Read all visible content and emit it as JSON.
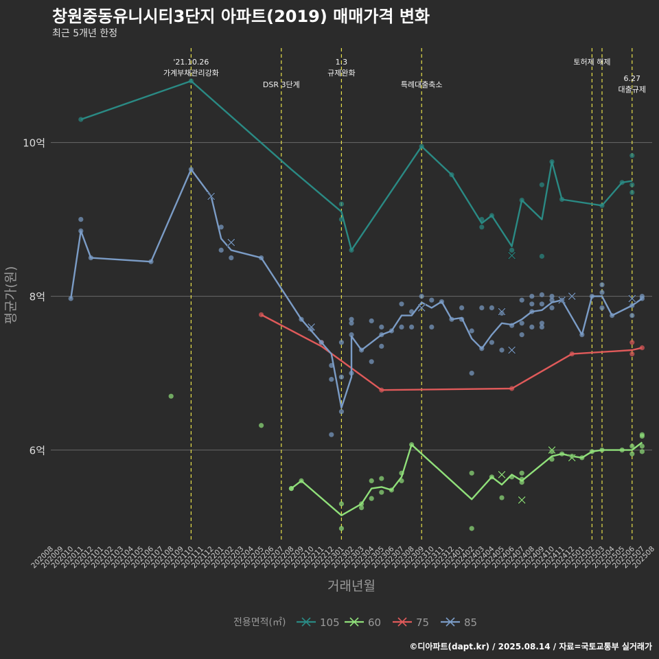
{
  "title": "창원중동유니시티3단지 아파트(2019) 매매가격 변화",
  "subtitle": "최근 5개년 한정",
  "caption": "©디아파트(dapt.kr) / 2025.08.14 / 자료=국토교통부 실거래가",
  "chart_data": {
    "type": "line",
    "xlabel": "거래년월",
    "ylabel": "평균가(원)",
    "x_ticks": [
      "202008",
      "202009",
      "202010",
      "202011",
      "202012",
      "202101",
      "202102",
      "202103",
      "202104",
      "202105",
      "202106",
      "202107",
      "202108",
      "202109",
      "202110",
      "202111",
      "202112",
      "202201",
      "202202",
      "202203",
      "202204",
      "202205",
      "202206",
      "202207",
      "202208",
      "202209",
      "202210",
      "202211",
      "202212",
      "202301",
      "202302",
      "202303",
      "202304",
      "202305",
      "202306",
      "202307",
      "202308",
      "202309",
      "202310",
      "202311",
      "202312",
      "202401",
      "202402",
      "202403",
      "202404",
      "202405",
      "202406",
      "202407",
      "202408",
      "202409",
      "202410",
      "202411",
      "202412",
      "202501",
      "202502",
      "202503",
      "202504",
      "202505",
      "202506",
      "202507",
      "202508"
    ],
    "y_ticks": [
      {
        "value": 6.0,
        "label": "6억"
      },
      {
        "value": 8.0,
        "label": "8억"
      },
      {
        "value": 10.0,
        "label": "10억"
      }
    ],
    "ylim": [
      4.8,
      11.3
    ],
    "grid": "horizontal",
    "legend": {
      "title": "전용면적(㎡)",
      "position": "bottom"
    },
    "annotations": [
      {
        "x": "202110",
        "lines": [
          "'21.10.26",
          "가계부채관리강화"
        ],
        "row": 0
      },
      {
        "x": "202207",
        "lines": [
          "DSR 3단계"
        ],
        "row": 1
      },
      {
        "x": "202301",
        "lines": [
          "1.3",
          "규제완화"
        ],
        "row": 0
      },
      {
        "x": "202309",
        "lines": [
          "특례대출축소"
        ],
        "row": 1
      },
      {
        "x": "202502",
        "lines": [
          "토허제 해제"
        ],
        "row": 0
      },
      {
        "x": "202503",
        "lines": [],
        "row": 0
      },
      {
        "x": "202506",
        "lines": [
          "6.27",
          "대출규제"
        ],
        "row": 1
      }
    ],
    "series": [
      {
        "name": "105",
        "color": "#2a8a84",
        "line": [
          [
            "202011",
            10.3
          ],
          [
            "202110",
            10.8
          ],
          [
            "202208",
            9.65
          ],
          [
            "202301",
            9.1
          ],
          [
            "202302",
            8.6
          ],
          [
            "202309",
            9.95
          ],
          [
            "202312",
            9.58
          ],
          [
            "202403",
            8.95
          ],
          [
            "202404",
            9.05
          ],
          [
            "202406",
            8.65
          ],
          [
            "202407",
            9.25
          ],
          [
            "202409",
            9.0
          ],
          [
            "202410",
            9.75
          ],
          [
            "202411",
            9.26
          ],
          [
            "202503",
            9.18
          ],
          [
            "202505",
            9.48
          ],
          [
            "202506",
            9.5
          ]
        ],
        "points": [
          [
            "202011",
            10.3
          ],
          [
            "202110",
            10.8
          ],
          [
            "202301",
            9.2
          ],
          [
            "202301",
            9.0
          ],
          [
            "202302",
            8.6
          ],
          [
            "202309",
            9.95
          ],
          [
            "202312",
            9.58
          ],
          [
            "202403",
            8.9
          ],
          [
            "202403",
            9.0
          ],
          [
            "202404",
            9.05
          ],
          [
            "202406",
            8.6
          ],
          [
            "202407",
            9.25
          ],
          [
            "202409",
            9.45
          ],
          [
            "202409",
            8.52
          ],
          [
            "202410",
            9.75
          ],
          [
            "202411",
            9.26
          ],
          [
            "202503",
            9.18
          ],
          [
            "202505",
            9.48
          ],
          [
            "202506",
            9.83
          ],
          [
            "202506",
            9.45
          ],
          [
            "202506",
            9.35
          ]
        ],
        "cancelled": [
          [
            "202406",
            8.53
          ]
        ]
      },
      {
        "name": "60",
        "color": "#90e07a",
        "line": [
          [
            "202208",
            5.5
          ],
          [
            "202209",
            5.6
          ],
          [
            "202301",
            5.15
          ],
          [
            "202303",
            5.3
          ],
          [
            "202304",
            5.5
          ],
          [
            "202305",
            5.52
          ],
          [
            "202306",
            5.48
          ],
          [
            "202307",
            5.65
          ],
          [
            "202308",
            6.07
          ],
          [
            "202402",
            5.36
          ],
          [
            "202404",
            5.65
          ],
          [
            "202405",
            5.55
          ],
          [
            "202406",
            5.68
          ],
          [
            "202407",
            5.6
          ],
          [
            "202410",
            5.92
          ],
          [
            "202411",
            5.95
          ],
          [
            "202412",
            5.92
          ],
          [
            "202501",
            5.9
          ],
          [
            "202502",
            5.98
          ],
          [
            "202503",
            6.0
          ],
          [
            "202506",
            6.0
          ],
          [
            "202507",
            6.1
          ]
        ],
        "points": [
          [
            "202108",
            6.7
          ],
          [
            "202205",
            6.32
          ],
          [
            "202208",
            5.5
          ],
          [
            "202208",
            5.5
          ],
          [
            "202209",
            5.6
          ],
          [
            "202301",
            5.3
          ],
          [
            "202301",
            4.98
          ],
          [
            "202303",
            5.3
          ],
          [
            "202303",
            5.25
          ],
          [
            "202304",
            5.6
          ],
          [
            "202304",
            5.37
          ],
          [
            "202305",
            5.63
          ],
          [
            "202305",
            5.45
          ],
          [
            "202306",
            5.48
          ],
          [
            "202307",
            5.7
          ],
          [
            "202307",
            5.6
          ],
          [
            "202308",
            6.07
          ],
          [
            "202402",
            5.7
          ],
          [
            "202402",
            4.98
          ],
          [
            "202404",
            5.65
          ],
          [
            "202405",
            5.38
          ],
          [
            "202406",
            5.65
          ],
          [
            "202407",
            5.7
          ],
          [
            "202407",
            5.62
          ],
          [
            "202407",
            5.58
          ],
          [
            "202410",
            5.88
          ],
          [
            "202410",
            5.98
          ],
          [
            "202411",
            5.95
          ],
          [
            "202412",
            5.92
          ],
          [
            "202501",
            5.9
          ],
          [
            "202502",
            5.98
          ],
          [
            "202503",
            6.0
          ],
          [
            "202505",
            6.0
          ],
          [
            "202506",
            6.05
          ],
          [
            "202506",
            5.95
          ],
          [
            "202507",
            6.2
          ],
          [
            "202507",
            6.18
          ],
          [
            "202507",
            6.05
          ],
          [
            "202507",
            5.98
          ]
        ],
        "cancelled": [
          [
            "202405",
            5.68
          ],
          [
            "202407",
            5.35
          ],
          [
            "202410",
            6.0
          ],
          [
            "202412",
            5.9
          ]
        ]
      },
      {
        "name": "75",
        "color": "#e05a5a",
        "line": [
          [
            "202205",
            7.76
          ],
          [
            "202211",
            7.35
          ],
          [
            "202305",
            6.78
          ],
          [
            "202406",
            6.8
          ],
          [
            "202412",
            7.25
          ],
          [
            "202506",
            7.3
          ],
          [
            "202507",
            7.33
          ]
        ],
        "points": [
          [
            "202205",
            7.76
          ],
          [
            "202211",
            7.4
          ],
          [
            "202305",
            6.78
          ],
          [
            "202406",
            6.8
          ],
          [
            "202412",
            7.25
          ],
          [
            "202506",
            7.4
          ],
          [
            "202506",
            7.25
          ],
          [
            "202507",
            7.33
          ]
        ],
        "cancelled": []
      },
      {
        "name": "85",
        "color": "#7b9cc6",
        "line": [
          [
            "202010",
            7.97
          ],
          [
            "202011",
            8.85
          ],
          [
            "202012",
            8.5
          ],
          [
            "202106",
            8.45
          ],
          [
            "202110",
            9.65
          ],
          [
            "202112",
            9.3
          ],
          [
            "202201",
            8.75
          ],
          [
            "202202",
            8.6
          ],
          [
            "202205",
            8.5
          ],
          [
            "202209",
            7.7
          ],
          [
            "202210",
            7.55
          ],
          [
            "202212",
            7.25
          ],
          [
            "202301",
            6.55
          ],
          [
            "202302",
            6.95
          ],
          [
            "202302",
            7.48
          ],
          [
            "202303",
            7.3
          ],
          [
            "202304",
            7.4
          ],
          [
            "202305",
            7.5
          ],
          [
            "202306",
            7.55
          ],
          [
            "202307",
            7.75
          ],
          [
            "202308",
            7.75
          ],
          [
            "202309",
            7.92
          ],
          [
            "202310",
            7.85
          ],
          [
            "202311",
            7.93
          ],
          [
            "202312",
            7.7
          ],
          [
            "202401",
            7.72
          ],
          [
            "202402",
            7.45
          ],
          [
            "202403",
            7.32
          ],
          [
            "202404",
            7.5
          ],
          [
            "202405",
            7.65
          ],
          [
            "202406",
            7.63
          ],
          [
            "202407",
            7.7
          ],
          [
            "202408",
            7.8
          ],
          [
            "202409",
            7.82
          ],
          [
            "202410",
            7.92
          ],
          [
            "202411",
            7.95
          ],
          [
            "202501",
            7.5
          ],
          [
            "202502",
            8.0
          ],
          [
            "202503",
            8.0
          ],
          [
            "202504",
            7.75
          ],
          [
            "202506",
            7.88
          ],
          [
            "202507",
            7.97
          ]
        ],
        "points": [
          [
            "202010",
            7.97
          ],
          [
            "202011",
            9.0
          ],
          [
            "202011",
            8.85
          ],
          [
            "202012",
            8.5
          ],
          [
            "202106",
            8.45
          ],
          [
            "202110",
            9.65
          ],
          [
            "202201",
            8.9
          ],
          [
            "202201",
            8.6
          ],
          [
            "202202",
            8.5
          ],
          [
            "202205",
            8.5
          ],
          [
            "202209",
            7.7
          ],
          [
            "202210",
            7.57
          ],
          [
            "202211",
            7.4
          ],
          [
            "202212",
            7.1
          ],
          [
            "202212",
            6.92
          ],
          [
            "202212",
            6.2
          ],
          [
            "202301",
            7.4
          ],
          [
            "202301",
            6.95
          ],
          [
            "202301",
            6.5
          ],
          [
            "202302",
            7.7
          ],
          [
            "202302",
            7.65
          ],
          [
            "202302",
            7.5
          ],
          [
            "202302",
            7.0
          ],
          [
            "202303",
            7.3
          ],
          [
            "202304",
            7.68
          ],
          [
            "202304",
            7.15
          ],
          [
            "202305",
            7.6
          ],
          [
            "202305",
            7.5
          ],
          [
            "202305",
            7.35
          ],
          [
            "202306",
            7.55
          ],
          [
            "202307",
            7.9
          ],
          [
            "202307",
            7.6
          ],
          [
            "202308",
            7.6
          ],
          [
            "202308",
            7.8
          ],
          [
            "202309",
            8.0
          ],
          [
            "202310",
            7.95
          ],
          [
            "202310",
            7.6
          ],
          [
            "202311",
            7.93
          ],
          [
            "202312",
            7.7
          ],
          [
            "202401",
            7.85
          ],
          [
            "202401",
            7.7
          ],
          [
            "202402",
            7.55
          ],
          [
            "202402",
            7.0
          ],
          [
            "202403",
            7.85
          ],
          [
            "202403",
            7.32
          ],
          [
            "202404",
            7.85
          ],
          [
            "202404",
            7.4
          ],
          [
            "202405",
            7.78
          ],
          [
            "202405",
            7.3
          ],
          [
            "202406",
            7.62
          ],
          [
            "202407",
            7.95
          ],
          [
            "202407",
            7.65
          ],
          [
            "202407",
            7.5
          ],
          [
            "202408",
            8.0
          ],
          [
            "202408",
            7.9
          ],
          [
            "202408",
            7.8
          ],
          [
            "202408",
            7.6
          ],
          [
            "202409",
            8.02
          ],
          [
            "202409",
            7.9
          ],
          [
            "202409",
            7.65
          ],
          [
            "202409",
            7.6
          ],
          [
            "202410",
            8.0
          ],
          [
            "202410",
            7.95
          ],
          [
            "202410",
            7.85
          ],
          [
            "202411",
            7.95
          ],
          [
            "202501",
            7.5
          ],
          [
            "202502",
            8.0
          ],
          [
            "202503",
            8.15
          ],
          [
            "202503",
            8.05
          ],
          [
            "202503",
            7.85
          ],
          [
            "202504",
            7.75
          ],
          [
            "202506",
            7.88
          ],
          [
            "202506",
            7.75
          ],
          [
            "202507",
            8.0
          ],
          [
            "202507",
            7.97
          ]
        ],
        "cancelled": [
          [
            "202210",
            7.6
          ],
          [
            "202112",
            9.3
          ],
          [
            "202202",
            8.7
          ],
          [
            "202309",
            7.85
          ],
          [
            "202405",
            7.8
          ],
          [
            "202406",
            7.3
          ],
          [
            "202411",
            7.95
          ],
          [
            "202412",
            8.0
          ],
          [
            "202506",
            7.97
          ]
        ]
      }
    ]
  }
}
